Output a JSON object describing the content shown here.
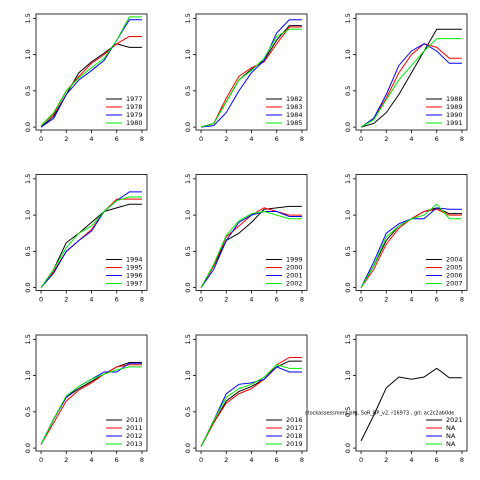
{
  "chart_data": [
    {
      "type": "line",
      "x": [
        0,
        1,
        2,
        3,
        4,
        5,
        6,
        7,
        8
      ],
      "xlim": [
        -0.4,
        8.4
      ],
      "ylim": [
        -0.04,
        1.56
      ],
      "xticks": [
        0,
        2,
        4,
        6,
        8
      ],
      "yticks": [
        {
          "value": 0,
          "label": "0.0"
        },
        0.5,
        {
          "value": 1,
          "label": "1.0"
        },
        1.5
      ],
      "legend": "bottomright",
      "series": [
        {
          "name": "1977",
          "color": "#000000",
          "values": [
            0,
            0.15,
            0.45,
            0.75,
            0.9,
            1.02,
            1.15,
            1.1,
            1.1
          ]
        },
        {
          "name": "1978",
          "color": "#ff0000",
          "values": [
            0.02,
            0.18,
            0.5,
            0.7,
            0.88,
            1.0,
            1.15,
            1.25,
            1.25
          ]
        },
        {
          "name": "1979",
          "color": "#0000ff",
          "values": [
            0,
            0.12,
            0.45,
            0.65,
            0.78,
            0.92,
            1.2,
            1.48,
            1.48
          ]
        },
        {
          "name": "1980",
          "color": "#00ee00",
          "values": [
            0.02,
            0.2,
            0.5,
            0.68,
            0.82,
            0.95,
            1.2,
            1.52,
            1.52
          ]
        }
      ]
    },
    {
      "type": "line",
      "x": [
        0,
        1,
        2,
        3,
        4,
        5,
        6,
        7,
        8
      ],
      "xlim": [
        -0.4,
        8.4
      ],
      "ylim": [
        -0.04,
        1.56
      ],
      "xticks": [
        0,
        2,
        4,
        6,
        8
      ],
      "yticks": [
        {
          "value": 0,
          "label": "0.0"
        },
        0.5,
        {
          "value": 1,
          "label": "1.0"
        },
        1.5
      ],
      "legend": "bottomright",
      "series": [
        {
          "name": "1982",
          "color": "#000000",
          "values": [
            0,
            0.05,
            0.35,
            0.65,
            0.8,
            0.92,
            1.2,
            1.4,
            1.4
          ]
        },
        {
          "name": "1983",
          "color": "#ff0000",
          "values": [
            0,
            0.05,
            0.4,
            0.7,
            0.82,
            0.9,
            1.15,
            1.38,
            1.38
          ]
        },
        {
          "name": "1984",
          "color": "#0000ff",
          "values": [
            0,
            0.02,
            0.2,
            0.5,
            0.75,
            0.92,
            1.3,
            1.48,
            1.48
          ]
        },
        {
          "name": "1985",
          "color": "#00ee00",
          "values": [
            0,
            0.05,
            0.35,
            0.65,
            0.78,
            0.95,
            1.25,
            1.35,
            1.35
          ]
        }
      ]
    },
    {
      "type": "line",
      "x": [
        0,
        1,
        2,
        3,
        4,
        5,
        6,
        7,
        8
      ],
      "xlim": [
        -0.4,
        8.4
      ],
      "ylim": [
        -0.04,
        1.56
      ],
      "xticks": [
        0,
        2,
        4,
        6,
        8
      ],
      "yticks": [
        {
          "value": 0,
          "label": "0.0"
        },
        0.5,
        {
          "value": 1,
          "label": "1.0"
        },
        1.5
      ],
      "legend": "bottomright",
      "series": [
        {
          "name": "1988",
          "color": "#000000",
          "values": [
            0,
            0.05,
            0.2,
            0.45,
            0.75,
            1.05,
            1.35,
            1.35,
            1.35
          ]
        },
        {
          "name": "1989",
          "color": "#ff0000",
          "values": [
            0,
            0.12,
            0.4,
            0.75,
            1.0,
            1.15,
            1.1,
            0.95,
            0.95
          ]
        },
        {
          "name": "1990",
          "color": "#0000ff",
          "values": [
            0,
            0.12,
            0.45,
            0.85,
            1.05,
            1.15,
            1.05,
            0.88,
            0.88
          ]
        },
        {
          "name": "1991",
          "color": "#00ee00",
          "values": [
            0,
            0.1,
            0.38,
            0.65,
            0.85,
            1.05,
            1.22,
            1.22,
            1.22
          ]
        }
      ]
    },
    {
      "type": "line",
      "x": [
        0,
        1,
        2,
        3,
        4,
        5,
        6,
        7,
        8
      ],
      "xlim": [
        -0.4,
        8.4
      ],
      "ylim": [
        -0.04,
        1.56
      ],
      "xticks": [
        0,
        2,
        4,
        6,
        8
      ],
      "yticks": [
        {
          "value": 0,
          "label": "0.0"
        },
        0.5,
        {
          "value": 1,
          "label": "1.0"
        },
        1.5
      ],
      "legend": "bottomright",
      "series": [
        {
          "name": "1994",
          "color": "#000000",
          "values": [
            0,
            0.25,
            0.62,
            0.75,
            0.9,
            1.05,
            1.1,
            1.15,
            1.15
          ]
        },
        {
          "name": "1995",
          "color": "#ff0000",
          "values": [
            0,
            0.22,
            0.5,
            0.65,
            0.8,
            1.05,
            1.22,
            1.22,
            1.22
          ]
        },
        {
          "name": "1996",
          "color": "#0000ff",
          "values": [
            0,
            0.2,
            0.5,
            0.65,
            0.78,
            1.05,
            1.2,
            1.32,
            1.32
          ]
        },
        {
          "name": "1997",
          "color": "#00ee00",
          "values": [
            0,
            0.25,
            0.55,
            0.75,
            0.85,
            1.05,
            1.2,
            1.25,
            1.25
          ]
        }
      ]
    },
    {
      "type": "line",
      "x": [
        0,
        1,
        2,
        3,
        4,
        5,
        6,
        7,
        8
      ],
      "xlim": [
        -0.4,
        8.4
      ],
      "ylim": [
        -0.04,
        1.56
      ],
      "xticks": [
        0,
        2,
        4,
        6,
        8
      ],
      "yticks": [
        {
          "value": 0,
          "label": "0.0"
        },
        0.5,
        {
          "value": 1,
          "label": "1.0"
        },
        1.5
      ],
      "legend": "bottomright",
      "series": [
        {
          "name": "1999",
          "color": "#000000",
          "values": [
            0,
            0.3,
            0.65,
            0.75,
            0.9,
            1.08,
            1.1,
            1.12,
            1.12
          ]
        },
        {
          "name": "2000",
          "color": "#ff0000",
          "values": [
            0,
            0.3,
            0.7,
            0.85,
            1.0,
            1.1,
            1.05,
            1.0,
            1.0
          ]
        },
        {
          "name": "2001",
          "color": "#0000ff",
          "values": [
            0,
            0.25,
            0.65,
            0.9,
            1.0,
            1.05,
            1.05,
            0.98,
            0.98
          ]
        },
        {
          "name": "2002",
          "color": "#00ee00",
          "values": [
            0,
            0.32,
            0.72,
            0.92,
            1.02,
            1.05,
            1.0,
            0.95,
            0.95
          ]
        }
      ]
    },
    {
      "type": "line",
      "x": [
        0,
        1,
        2,
        3,
        4,
        5,
        6,
        7,
        8
      ],
      "xlim": [
        -0.4,
        8.4
      ],
      "ylim": [
        -0.04,
        1.56
      ],
      "xticks": [
        0,
        2,
        4,
        6,
        8
      ],
      "yticks": [
        {
          "value": 0,
          "label": "0.0"
        },
        0.5,
        {
          "value": 1,
          "label": "1.0"
        },
        1.5
      ],
      "legend": "bottomright",
      "series": [
        {
          "name": "2004",
          "color": "#000000",
          "values": [
            0,
            0.3,
            0.65,
            0.85,
            0.95,
            1.05,
            1.1,
            1.02,
            1.02
          ]
        },
        {
          "name": "2005",
          "color": "#ff0000",
          "values": [
            0,
            0.25,
            0.6,
            0.82,
            0.95,
            1.05,
            1.08,
            1.0,
            1.0
          ]
        },
        {
          "name": "2006",
          "color": "#0000ff",
          "values": [
            0,
            0.35,
            0.75,
            0.88,
            0.95,
            0.95,
            1.1,
            1.08,
            1.08
          ]
        },
        {
          "name": "2007",
          "color": "#00ee00",
          "values": [
            0,
            0.3,
            0.7,
            0.85,
            0.95,
            1.0,
            1.15,
            0.95,
            0.95
          ]
        }
      ]
    },
    {
      "type": "line",
      "x": [
        0,
        1,
        2,
        3,
        4,
        5,
        6,
        7,
        8
      ],
      "xlim": [
        -0.4,
        8.4
      ],
      "ylim": [
        -0.04,
        1.56
      ],
      "xticks": [
        0,
        2,
        4,
        6,
        8
      ],
      "yticks": [
        {
          "value": 0,
          "label": "0.0"
        },
        0.5,
        {
          "value": 1,
          "label": "1.0"
        },
        1.5
      ],
      "legend": "bottomright",
      "series": [
        {
          "name": "2010",
          "color": "#000000",
          "values": [
            0.05,
            0.4,
            0.7,
            0.82,
            0.92,
            1.02,
            1.12,
            1.18,
            1.18
          ]
        },
        {
          "name": "2011",
          "color": "#ff0000",
          "values": [
            0.05,
            0.35,
            0.65,
            0.8,
            0.9,
            1.02,
            1.12,
            1.15,
            1.15
          ]
        },
        {
          "name": "2012",
          "color": "#0000ff",
          "values": [
            0.05,
            0.4,
            0.7,
            0.85,
            0.95,
            1.05,
            1.05,
            1.17,
            1.17
          ]
        },
        {
          "name": "2013",
          "color": "#00ee00",
          "values": [
            0.05,
            0.4,
            0.72,
            0.85,
            0.95,
            1.02,
            1.08,
            1.12,
            1.12
          ]
        }
      ]
    },
    {
      "type": "line",
      "x": [
        0,
        1,
        2,
        3,
        4,
        5,
        6,
        7,
        8
      ],
      "xlim": [
        -0.4,
        8.4
      ],
      "ylim": [
        -0.04,
        1.56
      ],
      "xticks": [
        0,
        2,
        4,
        6,
        8
      ],
      "yticks": [
        {
          "value": 0,
          "label": "0.0"
        },
        0.5,
        {
          "value": 1,
          "label": "1.0"
        },
        1.5
      ],
      "legend": "bottomright",
      "annotation": "stockassessment.org, SoR_BP_v2, r16973 , git: ac2c2ab0de",
      "series": [
        {
          "name": "2016",
          "color": "#000000",
          "values": [
            0.02,
            0.35,
            0.65,
            0.78,
            0.85,
            0.95,
            1.12,
            1.2,
            1.2
          ]
        },
        {
          "name": "2017",
          "color": "#ff0000",
          "values": [
            0.02,
            0.35,
            0.62,
            0.75,
            0.82,
            0.95,
            1.15,
            1.25,
            1.25
          ]
        },
        {
          "name": "2018",
          "color": "#0000ff",
          "values": [
            0.02,
            0.38,
            0.75,
            0.88,
            0.9,
            0.95,
            1.12,
            1.05,
            1.05
          ]
        },
        {
          "name": "2019",
          "color": "#00ee00",
          "values": [
            0.02,
            0.38,
            0.7,
            0.82,
            0.88,
            0.98,
            1.15,
            1.1,
            1.1
          ]
        }
      ]
    },
    {
      "type": "line",
      "x": [
        0,
        1,
        2,
        3,
        4,
        5,
        6,
        7,
        8
      ],
      "xlim": [
        -0.4,
        8.4
      ],
      "ylim": [
        -0.04,
        1.56
      ],
      "xticks": [
        0,
        2,
        4,
        6,
        8
      ],
      "yticks": [
        {
          "value": 0,
          "label": "0.0"
        },
        0.5,
        {
          "value": 1,
          "label": "1.0"
        },
        1.5
      ],
      "legend": "bottomright",
      "series": [
        {
          "name": "2021",
          "color": "#000000",
          "values": [
            0.1,
            0.45,
            0.83,
            0.98,
            0.95,
            0.98,
            1.1,
            0.97,
            0.97
          ]
        },
        {
          "name": "NA",
          "color": "#ff0000",
          "values": [
            null,
            null,
            null,
            null,
            null,
            null,
            null,
            null,
            null
          ]
        },
        {
          "name": "NA",
          "color": "#0000ff",
          "values": [
            null,
            null,
            null,
            null,
            null,
            null,
            null,
            null,
            null
          ]
        },
        {
          "name": "NA",
          "color": "#00ee00",
          "values": [
            null,
            null,
            null,
            null,
            null,
            null,
            null,
            null,
            null
          ]
        }
      ]
    }
  ]
}
